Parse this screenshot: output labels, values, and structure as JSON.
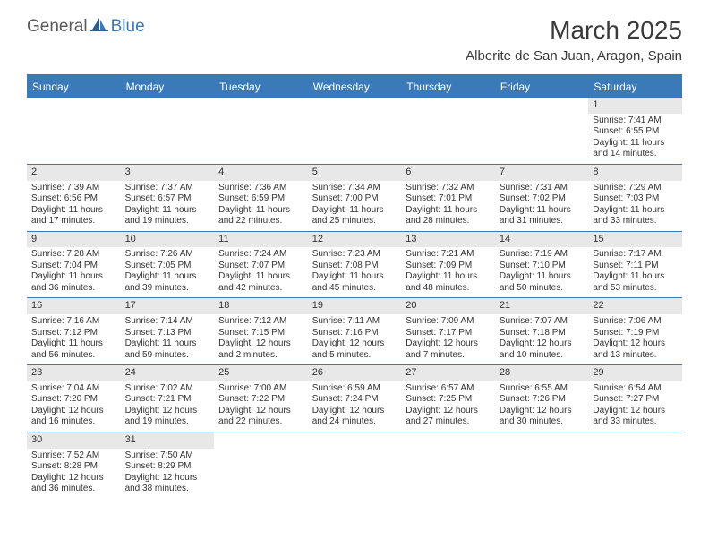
{
  "brand": {
    "general": "General",
    "blue": "Blue"
  },
  "title": "March 2025",
  "location": "Alberite de San Juan, Aragon, Spain",
  "colors": {
    "header_bg": "#3a7ab8",
    "header_text": "#ffffff",
    "daynum_bg": "#e8e8e8",
    "text": "#333333",
    "border": "#3a7ab8"
  },
  "day_names": [
    "Sunday",
    "Monday",
    "Tuesday",
    "Wednesday",
    "Thursday",
    "Friday",
    "Saturday"
  ],
  "weeks": [
    [
      null,
      null,
      null,
      null,
      null,
      null,
      {
        "n": "1",
        "sr": "Sunrise: 7:41 AM",
        "ss": "Sunset: 6:55 PM",
        "dl": "Daylight: 11 hours and 14 minutes."
      }
    ],
    [
      {
        "n": "2",
        "sr": "Sunrise: 7:39 AM",
        "ss": "Sunset: 6:56 PM",
        "dl": "Daylight: 11 hours and 17 minutes."
      },
      {
        "n": "3",
        "sr": "Sunrise: 7:37 AM",
        "ss": "Sunset: 6:57 PM",
        "dl": "Daylight: 11 hours and 19 minutes."
      },
      {
        "n": "4",
        "sr": "Sunrise: 7:36 AM",
        "ss": "Sunset: 6:59 PM",
        "dl": "Daylight: 11 hours and 22 minutes."
      },
      {
        "n": "5",
        "sr": "Sunrise: 7:34 AM",
        "ss": "Sunset: 7:00 PM",
        "dl": "Daylight: 11 hours and 25 minutes."
      },
      {
        "n": "6",
        "sr": "Sunrise: 7:32 AM",
        "ss": "Sunset: 7:01 PM",
        "dl": "Daylight: 11 hours and 28 minutes."
      },
      {
        "n": "7",
        "sr": "Sunrise: 7:31 AM",
        "ss": "Sunset: 7:02 PM",
        "dl": "Daylight: 11 hours and 31 minutes."
      },
      {
        "n": "8",
        "sr": "Sunrise: 7:29 AM",
        "ss": "Sunset: 7:03 PM",
        "dl": "Daylight: 11 hours and 33 minutes."
      }
    ],
    [
      {
        "n": "9",
        "sr": "Sunrise: 7:28 AM",
        "ss": "Sunset: 7:04 PM",
        "dl": "Daylight: 11 hours and 36 minutes."
      },
      {
        "n": "10",
        "sr": "Sunrise: 7:26 AM",
        "ss": "Sunset: 7:05 PM",
        "dl": "Daylight: 11 hours and 39 minutes."
      },
      {
        "n": "11",
        "sr": "Sunrise: 7:24 AM",
        "ss": "Sunset: 7:07 PM",
        "dl": "Daylight: 11 hours and 42 minutes."
      },
      {
        "n": "12",
        "sr": "Sunrise: 7:23 AM",
        "ss": "Sunset: 7:08 PM",
        "dl": "Daylight: 11 hours and 45 minutes."
      },
      {
        "n": "13",
        "sr": "Sunrise: 7:21 AM",
        "ss": "Sunset: 7:09 PM",
        "dl": "Daylight: 11 hours and 48 minutes."
      },
      {
        "n": "14",
        "sr": "Sunrise: 7:19 AM",
        "ss": "Sunset: 7:10 PM",
        "dl": "Daylight: 11 hours and 50 minutes."
      },
      {
        "n": "15",
        "sr": "Sunrise: 7:17 AM",
        "ss": "Sunset: 7:11 PM",
        "dl": "Daylight: 11 hours and 53 minutes."
      }
    ],
    [
      {
        "n": "16",
        "sr": "Sunrise: 7:16 AM",
        "ss": "Sunset: 7:12 PM",
        "dl": "Daylight: 11 hours and 56 minutes."
      },
      {
        "n": "17",
        "sr": "Sunrise: 7:14 AM",
        "ss": "Sunset: 7:13 PM",
        "dl": "Daylight: 11 hours and 59 minutes."
      },
      {
        "n": "18",
        "sr": "Sunrise: 7:12 AM",
        "ss": "Sunset: 7:15 PM",
        "dl": "Daylight: 12 hours and 2 minutes."
      },
      {
        "n": "19",
        "sr": "Sunrise: 7:11 AM",
        "ss": "Sunset: 7:16 PM",
        "dl": "Daylight: 12 hours and 5 minutes."
      },
      {
        "n": "20",
        "sr": "Sunrise: 7:09 AM",
        "ss": "Sunset: 7:17 PM",
        "dl": "Daylight: 12 hours and 7 minutes."
      },
      {
        "n": "21",
        "sr": "Sunrise: 7:07 AM",
        "ss": "Sunset: 7:18 PM",
        "dl": "Daylight: 12 hours and 10 minutes."
      },
      {
        "n": "22",
        "sr": "Sunrise: 7:06 AM",
        "ss": "Sunset: 7:19 PM",
        "dl": "Daylight: 12 hours and 13 minutes."
      }
    ],
    [
      {
        "n": "23",
        "sr": "Sunrise: 7:04 AM",
        "ss": "Sunset: 7:20 PM",
        "dl": "Daylight: 12 hours and 16 minutes."
      },
      {
        "n": "24",
        "sr": "Sunrise: 7:02 AM",
        "ss": "Sunset: 7:21 PM",
        "dl": "Daylight: 12 hours and 19 minutes."
      },
      {
        "n": "25",
        "sr": "Sunrise: 7:00 AM",
        "ss": "Sunset: 7:22 PM",
        "dl": "Daylight: 12 hours and 22 minutes."
      },
      {
        "n": "26",
        "sr": "Sunrise: 6:59 AM",
        "ss": "Sunset: 7:24 PM",
        "dl": "Daylight: 12 hours and 24 minutes."
      },
      {
        "n": "27",
        "sr": "Sunrise: 6:57 AM",
        "ss": "Sunset: 7:25 PM",
        "dl": "Daylight: 12 hours and 27 minutes."
      },
      {
        "n": "28",
        "sr": "Sunrise: 6:55 AM",
        "ss": "Sunset: 7:26 PM",
        "dl": "Daylight: 12 hours and 30 minutes."
      },
      {
        "n": "29",
        "sr": "Sunrise: 6:54 AM",
        "ss": "Sunset: 7:27 PM",
        "dl": "Daylight: 12 hours and 33 minutes."
      }
    ],
    [
      {
        "n": "30",
        "sr": "Sunrise: 7:52 AM",
        "ss": "Sunset: 8:28 PM",
        "dl": "Daylight: 12 hours and 36 minutes."
      },
      {
        "n": "31",
        "sr": "Sunrise: 7:50 AM",
        "ss": "Sunset: 8:29 PM",
        "dl": "Daylight: 12 hours and 38 minutes."
      },
      null,
      null,
      null,
      null,
      null
    ]
  ]
}
